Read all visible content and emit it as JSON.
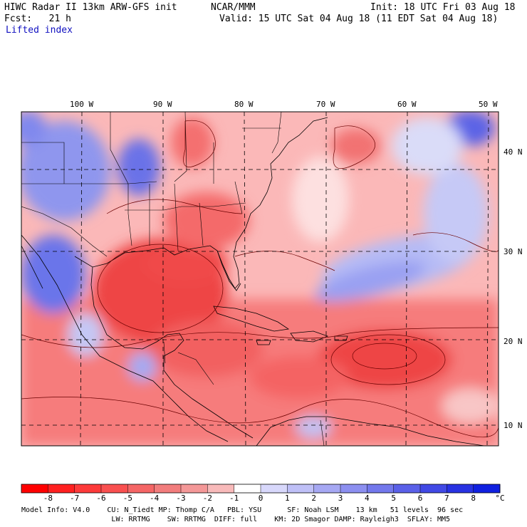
{
  "header": {
    "title": "HIWC Radar II 13km ARW-GFS init",
    "org": "NCAR/MMM",
    "init": "Init: 18 UTC Fri 03 Aug 18",
    "fcst": "Fcst:   21 h",
    "valid": "Valid: 15 UTC Sat 04 Aug 18 (11 EDT Sat 04 Aug 18)",
    "field": "Lifted index"
  },
  "map": {
    "lon_labels": [
      "100 W",
      "90 W",
      "80 W",
      "70 W",
      "60 W",
      "50 W"
    ],
    "lat_labels": [
      "40 N",
      "30 N",
      "20 N",
      "10 N"
    ],
    "colors": {
      "neg_strong": "#ee3030",
      "neg_mid": "#f86060",
      "neg_light": "#fbb0b0",
      "neutral": "#ffffff",
      "pos_light": "#c8ccf8",
      "pos_mid": "#7f88ee",
      "pos_strong": "#3b46e0"
    }
  },
  "colorbar": {
    "ticks": [
      "-8",
      "-7",
      "-6",
      "-5",
      "-4",
      "-3",
      "-2",
      "-1",
      "0",
      "1",
      "2",
      "3",
      "4",
      "5",
      "6",
      "7",
      "8"
    ],
    "unit": "°C",
    "colors": [
      "#ff0000",
      "#ff2020",
      "#fd3a3a",
      "#f95050",
      "#f56666",
      "#f27d7d",
      "#f49898",
      "#f8baba",
      "#ffffff",
      "#d8d8fb",
      "#bfc0f7",
      "#a6a8f3",
      "#8c8ff0",
      "#7378ec",
      "#5a60e8",
      "#4149e5",
      "#2832e2",
      "#1020e0"
    ]
  },
  "footer": {
    "line1": "Model Info: V4.0    CU: N_Tiedt MP: Thomp C/A   PBL: YSU      SF: Noah LSM    13 km   51 levels  96 sec",
    "line2": "                     LW: RRTMG    SW: RRTMG  DIFF: full    KM: 2D Smagor DAMP: Rayleigh3  SFLAY: MM5"
  }
}
